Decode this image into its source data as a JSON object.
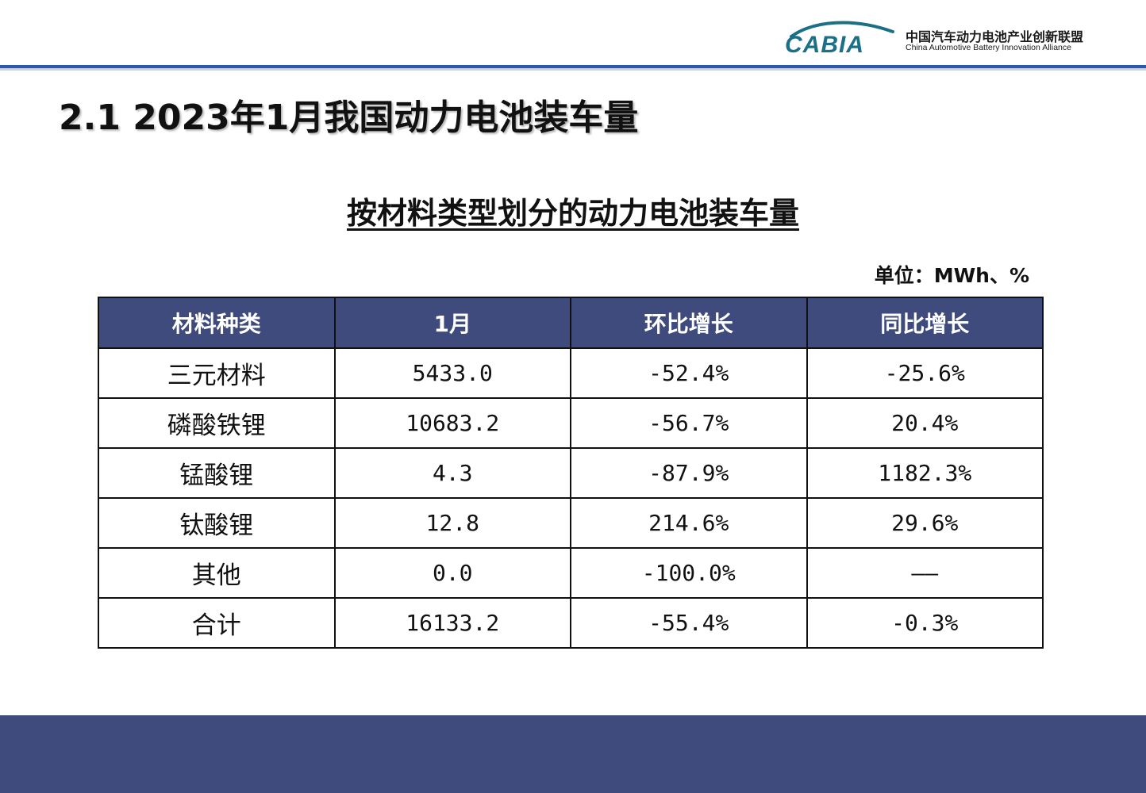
{
  "header": {
    "logo_text": "CABIA",
    "org_name_cn": "中国汽车动力电池产业创新联盟",
    "org_name_en": "China Automotive Battery Innovation Alliance"
  },
  "page_title": "2.1  2023年1月我国动力电池装车量",
  "table_title": "按材料类型划分的动力电池装车量",
  "unit_label": "单位：MWh、%",
  "table": {
    "columns": [
      "材料种类",
      "1月",
      "环比增长",
      "同比增长"
    ],
    "rows": [
      [
        "三元材料",
        "5433.0",
        "-52.4%",
        "-25.6%"
      ],
      [
        "磷酸铁锂",
        "10683.2",
        "-56.7%",
        "20.4%"
      ],
      [
        "锰酸锂",
        "4.3",
        "-87.9%",
        "1182.3%"
      ],
      [
        "钛酸锂",
        "12.8",
        "214.6%",
        "29.6%"
      ],
      [
        "其他",
        "0.0",
        "-100.0%",
        "——"
      ],
      [
        "合计",
        "16133.2",
        "-55.4%",
        "-0.3%"
      ]
    ]
  },
  "colors": {
    "header_fill": "#3f4a7d",
    "footer_band": "#3f4a7d",
    "top_rule": "#2a5aa8",
    "logo_teal": "#1b6f86"
  }
}
